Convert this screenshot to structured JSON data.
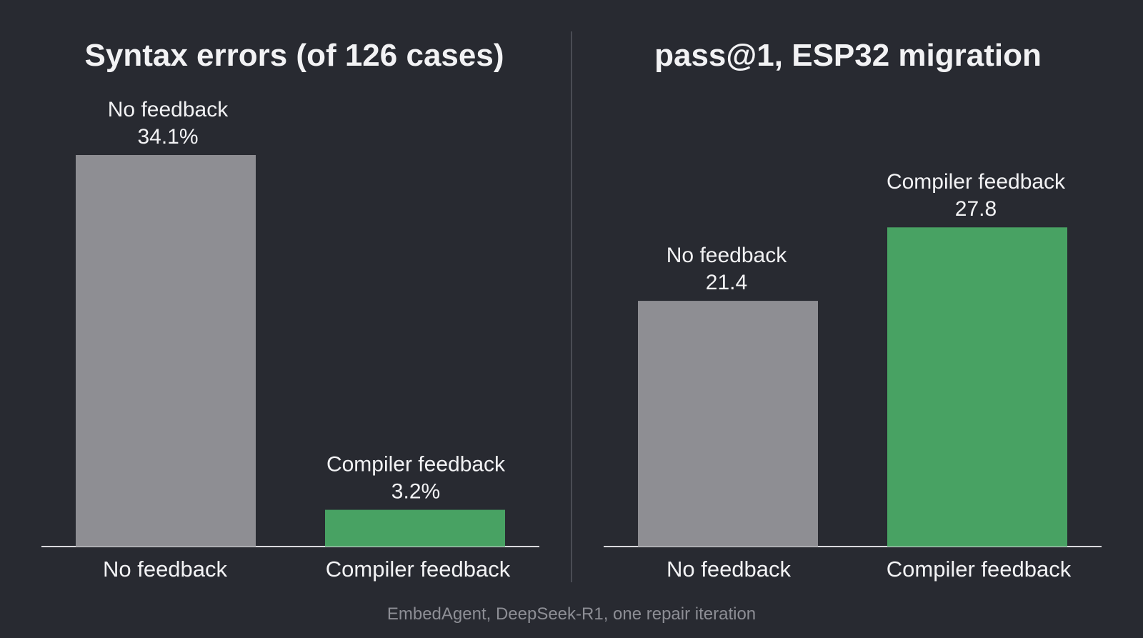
{
  "chart_data": [
    {
      "type": "bar",
      "title": "Syntax errors (of 126 cases)",
      "xlabel": "",
      "ylabel": "",
      "categories": [
        "No feedback",
        "Compiler feedback"
      ],
      "values": [
        34.1,
        3.2
      ],
      "value_labels": [
        "34.1%",
        "3.2%"
      ],
      "bar_top_labels": [
        "No feedback",
        "Compiler feedback"
      ],
      "colors": [
        "#8e8e93",
        "#48a263"
      ],
      "ylim": [
        0,
        34.1
      ],
      "grid": false
    },
    {
      "type": "bar",
      "title": "pass@1, ESP32 migration",
      "xlabel": "",
      "ylabel": "",
      "categories": [
        "No feedback",
        "Compiler feedback"
      ],
      "values": [
        21.4,
        27.8
      ],
      "value_labels": [
        "21.4",
        "27.8"
      ],
      "bar_top_labels": [
        "No feedback",
        "Compiler feedback"
      ],
      "colors": [
        "#8e8e93",
        "#48a263"
      ],
      "ylim": [
        0,
        34.1
      ],
      "grid": false
    }
  ],
  "caption": "EmbedAgent, DeepSeek-R1, one repair iteration"
}
